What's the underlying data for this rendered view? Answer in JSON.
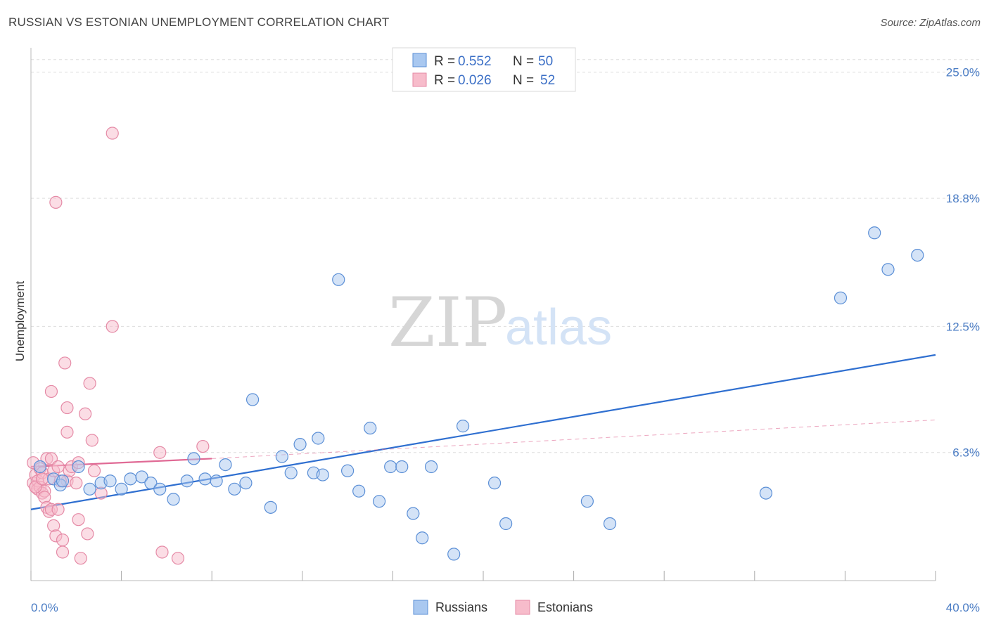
{
  "title": "RUSSIAN VS ESTONIAN UNEMPLOYMENT CORRELATION CHART",
  "source": "Source: ZipAtlas.com",
  "watermark": {
    "zip": "ZIP",
    "atlas": "atlas"
  },
  "colors": {
    "russians_fill": "#a9c8f0",
    "russians_stroke": "#5b8fd6",
    "russians_line": "#2f6fd0",
    "estonians_fill": "#f7bccb",
    "estonians_stroke": "#e58aa6",
    "estonians_line": "#e06a95",
    "grid": "#dddddd",
    "axis_label": "#4a7cc4"
  },
  "legend": {
    "rows": [
      {
        "r_label": "R = ",
        "r_value": "0.552",
        "n_label": "N = ",
        "n_value": "50"
      },
      {
        "r_label": "R = ",
        "r_value": "0.026",
        "n_label": "N = ",
        "n_value": "52"
      }
    ]
  },
  "chart_data": {
    "type": "scatter",
    "title": "RUSSIAN VS ESTONIAN UNEMPLOYMENT CORRELATION CHART",
    "xlabel": "",
    "ylabel": "Unemployment",
    "xlim": [
      0,
      40
    ],
    "ylim": [
      0,
      26.2
    ],
    "x_tick_labels": [
      "0.0%",
      "40.0%"
    ],
    "y_ticks": [
      6.3,
      12.5,
      18.8,
      25.0
    ],
    "y_tick_labels": [
      "6.3%",
      "12.5%",
      "18.8%",
      "25.0%"
    ],
    "grid": true,
    "legend_position": "top-center",
    "series": [
      {
        "name": "Russians",
        "r": 0.552,
        "n": 50,
        "trend": {
          "x": [
            0,
            40
          ],
          "y": [
            3.5,
            11.1
          ]
        },
        "points": [
          [
            0.4,
            5.6
          ],
          [
            1.0,
            5.0
          ],
          [
            1.3,
            4.7
          ],
          [
            1.4,
            4.9
          ],
          [
            2.1,
            5.6
          ],
          [
            2.6,
            4.5
          ],
          [
            3.1,
            4.8
          ],
          [
            3.5,
            4.9
          ],
          [
            4.0,
            4.5
          ],
          [
            4.4,
            5.0
          ],
          [
            4.9,
            5.1
          ],
          [
            5.3,
            4.8
          ],
          [
            5.7,
            4.5
          ],
          [
            6.3,
            4.0
          ],
          [
            6.9,
            4.9
          ],
          [
            7.2,
            6.0
          ],
          [
            7.7,
            5.0
          ],
          [
            8.2,
            4.9
          ],
          [
            8.6,
            5.7
          ],
          [
            9.0,
            4.5
          ],
          [
            9.5,
            4.8
          ],
          [
            9.8,
            8.9
          ],
          [
            10.6,
            3.6
          ],
          [
            11.1,
            6.1
          ],
          [
            11.5,
            5.3
          ],
          [
            11.9,
            6.7
          ],
          [
            12.5,
            5.3
          ],
          [
            12.7,
            7.0
          ],
          [
            12.9,
            5.2
          ],
          [
            13.6,
            14.8
          ],
          [
            14.0,
            5.4
          ],
          [
            14.5,
            4.4
          ],
          [
            15.0,
            7.5
          ],
          [
            15.4,
            3.9
          ],
          [
            15.9,
            5.6
          ],
          [
            16.4,
            5.6
          ],
          [
            16.9,
            3.3
          ],
          [
            17.3,
            2.1
          ],
          [
            17.7,
            5.6
          ],
          [
            18.7,
            1.3
          ],
          [
            19.1,
            7.6
          ],
          [
            21.0,
            2.8
          ],
          [
            20.5,
            4.8
          ],
          [
            24.6,
            3.9
          ],
          [
            25.6,
            2.8
          ],
          [
            32.5,
            4.3
          ],
          [
            35.8,
            13.9
          ],
          [
            37.3,
            17.1
          ],
          [
            37.9,
            15.3
          ],
          [
            39.2,
            16.0
          ]
        ]
      },
      {
        "name": "Estonians",
        "r": 0.026,
        "n": 52,
        "trend": {
          "x": [
            0,
            8.0
          ],
          "y": [
            5.6,
            6.0
          ]
        },
        "trend_dashed": {
          "x": [
            8.0,
            40
          ],
          "y": [
            6.0,
            7.9
          ]
        },
        "points": [
          [
            0.1,
            5.8
          ],
          [
            0.1,
            4.8
          ],
          [
            0.2,
            4.6
          ],
          [
            0.2,
            5.2
          ],
          [
            0.3,
            4.5
          ],
          [
            0.3,
            4.9
          ],
          [
            0.4,
            5.5
          ],
          [
            0.4,
            4.6
          ],
          [
            0.5,
            4.3
          ],
          [
            0.5,
            5.3
          ],
          [
            0.6,
            4.4
          ],
          [
            0.6,
            4.1
          ],
          [
            0.7,
            6.0
          ],
          [
            0.7,
            3.6
          ],
          [
            0.8,
            3.4
          ],
          [
            0.8,
            5.0
          ],
          [
            0.9,
            3.5
          ],
          [
            0.9,
            6.0
          ],
          [
            0.9,
            9.3
          ],
          [
            1.0,
            2.7
          ],
          [
            1.0,
            5.4
          ],
          [
            1.1,
            2.2
          ],
          [
            1.1,
            18.6
          ],
          [
            1.2,
            5.6
          ],
          [
            1.2,
            3.5
          ],
          [
            1.4,
            2.0
          ],
          [
            1.4,
            1.4
          ],
          [
            1.5,
            10.7
          ],
          [
            1.6,
            8.5
          ],
          [
            1.6,
            7.3
          ],
          [
            1.6,
            4.9
          ],
          [
            1.7,
            5.4
          ],
          [
            1.8,
            5.6
          ],
          [
            2.0,
            4.8
          ],
          [
            2.1,
            5.8
          ],
          [
            2.1,
            3.0
          ],
          [
            2.2,
            1.1
          ],
          [
            2.4,
            8.2
          ],
          [
            2.5,
            2.3
          ],
          [
            2.6,
            9.7
          ],
          [
            2.7,
            6.9
          ],
          [
            2.8,
            5.4
          ],
          [
            3.1,
            4.3
          ],
          [
            3.6,
            12.5
          ],
          [
            3.6,
            22.0
          ],
          [
            5.7,
            6.3
          ],
          [
            5.8,
            1.4
          ],
          [
            6.5,
            1.1
          ],
          [
            7.6,
            6.6
          ],
          [
            0.2,
            4.6
          ],
          [
            0.5,
            5.0
          ],
          [
            1.3,
            4.9
          ]
        ]
      }
    ]
  }
}
